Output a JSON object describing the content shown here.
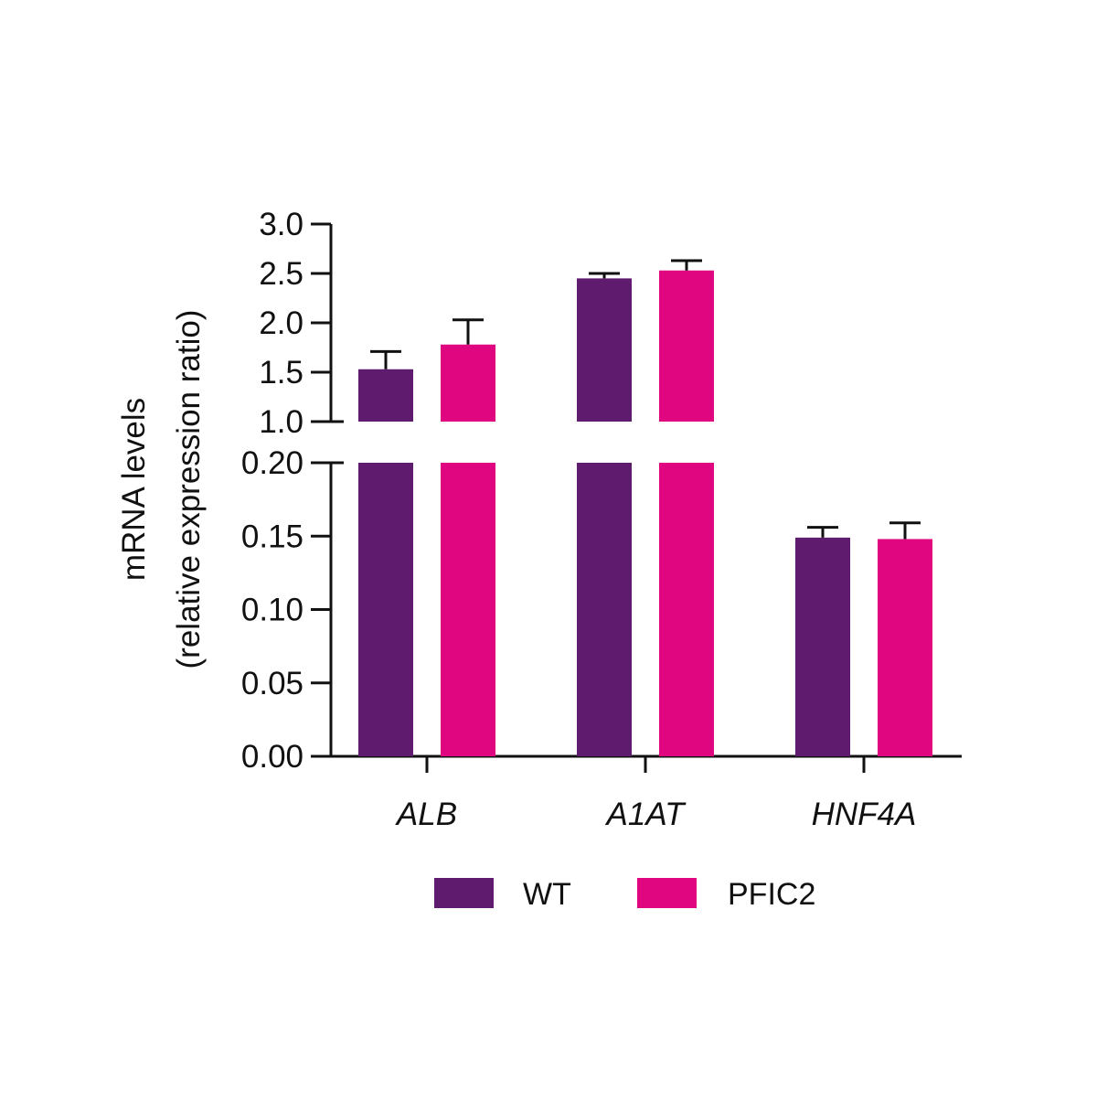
{
  "chart_data": {
    "type": "bar",
    "categories": [
      "ALB",
      "A1AT",
      "HNF4A"
    ],
    "series": [
      {
        "name": "WT",
        "color": "#5f1b6e",
        "values": [
          1.53,
          2.45,
          0.149
        ],
        "error": [
          0.18,
          0.05,
          0.007
        ]
      },
      {
        "name": "PFIC2",
        "color": "#e0067f",
        "values": [
          1.78,
          2.53,
          0.148
        ],
        "error": [
          0.25,
          0.1,
          0.011
        ]
      }
    ],
    "title": "",
    "ylabel_line1": "mRNA levels",
    "ylabel_line2": "(relative expression ratio)",
    "xlabel": "",
    "axis_break": true,
    "lower_segment": {
      "ylim": [
        0.0,
        0.2
      ],
      "ticks": [
        "0.00",
        "0.05",
        "0.10",
        "0.15",
        "0.20"
      ]
    },
    "upper_segment": {
      "ylim": [
        1.0,
        3.0
      ],
      "ticks": [
        "1.0",
        "1.5",
        "2.0",
        "2.5",
        "3.0"
      ]
    },
    "grid": false,
    "legend_position": "bottom"
  }
}
